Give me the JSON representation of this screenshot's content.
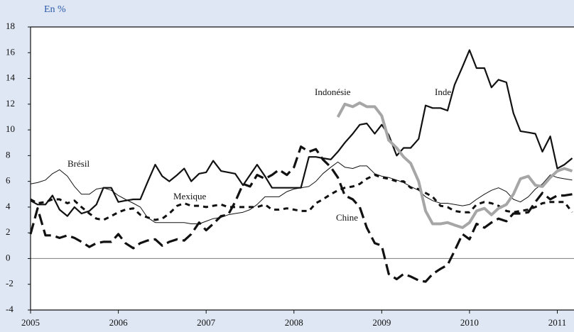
{
  "chart_data": {
    "type": "line",
    "y_label": "En %",
    "x": [
      2005,
      2005.08,
      2005.17,
      2005.25,
      2005.33,
      2005.42,
      2005.5,
      2005.58,
      2005.67,
      2005.75,
      2005.83,
      2005.92,
      2006,
      2006.08,
      2006.17,
      2006.25,
      2006.33,
      2006.42,
      2006.5,
      2006.58,
      2006.67,
      2006.75,
      2006.83,
      2006.92,
      2007,
      2007.08,
      2007.17,
      2007.25,
      2007.33,
      2007.42,
      2007.5,
      2007.58,
      2007.67,
      2007.75,
      2007.83,
      2007.92,
      2008,
      2008.08,
      2008.17,
      2008.25,
      2008.33,
      2008.42,
      2008.5,
      2008.58,
      2008.67,
      2008.75,
      2008.83,
      2008.92,
      2009,
      2009.08,
      2009.17,
      2009.25,
      2009.33,
      2009.42,
      2009.5,
      2009.58,
      2009.67,
      2009.75,
      2009.83,
      2009.92,
      2010,
      2010.08,
      2010.17,
      2010.25,
      2010.33,
      2010.42,
      2010.5,
      2010.58,
      2010.67,
      2010.75,
      2010.83,
      2010.92,
      2011,
      2011.08,
      2011.17
    ],
    "series": [
      {
        "name": "Inde",
        "color": "#111111",
        "values": [
          4.5,
          4.2,
          4.2,
          4.9,
          3.8,
          3.3,
          4.0,
          3.5,
          3.7,
          4.2,
          5.5,
          5.5,
          4.4,
          4.5,
          4.6,
          4.6,
          5.9,
          7.3,
          6.4,
          6.0,
          6.5,
          7.0,
          6.0,
          6.6,
          6.7,
          7.6,
          6.8,
          6.7,
          6.6,
          5.7,
          6.5,
          7.3,
          6.4,
          5.5,
          5.5,
          5.5,
          5.5,
          5.5,
          7.9,
          7.9,
          7.8,
          7.7,
          8.3,
          9.0,
          9.7,
          10.4,
          10.5,
          9.7,
          10.4,
          9.6,
          8.0,
          8.6,
          8.6,
          9.3,
          11.9,
          11.7,
          11.7,
          11.5,
          13.5,
          14.9,
          16.2,
          14.8,
          14.8,
          13.3,
          13.9,
          13.7,
          11.3,
          9.9,
          9.8,
          9.7,
          8.3,
          9.5,
          7.0,
          7.3,
          7.8
        ]
      },
      {
        "name": "Brésil",
        "color": "#111111",
        "values": [
          5.8,
          5.9,
          6.1,
          6.6,
          6.9,
          6.4,
          5.6,
          5.0,
          5.0,
          5.4,
          5.5,
          5.3,
          4.9,
          4.6,
          4.3,
          4.0,
          3.2,
          2.8,
          2.8,
          2.8,
          2.8,
          2.8,
          2.7,
          2.7,
          2.9,
          3.1,
          3.2,
          3.4,
          3.5,
          3.6,
          3.8,
          4.2,
          4.8,
          4.8,
          4.8,
          5.2,
          5.4,
          5.5,
          5.6,
          6.0,
          6.6,
          7.1,
          7.5,
          7.1,
          7.0,
          7.2,
          7.2,
          6.6,
          6.4,
          6.3,
          6.1,
          5.9,
          5.6,
          5.3,
          4.8,
          4.5,
          4.3,
          4.3,
          4.2,
          4.1,
          4.2,
          4.6,
          5.0,
          5.3,
          5.5,
          5.2,
          4.6,
          4.4,
          4.8,
          5.4,
          5.8,
          6.5,
          6.3,
          6.2,
          6.1
        ]
      },
      {
        "name": "Mexique",
        "color": "#111111",
        "values": [
          4.6,
          4.3,
          4.4,
          4.6,
          4.6,
          4.3,
          4.5,
          4.0,
          3.5,
          3.1,
          3.0,
          3.3,
          3.6,
          3.8,
          3.9,
          3.4,
          3.2,
          3.0,
          3.1,
          3.5,
          4.1,
          4.3,
          4.1,
          4.1,
          4.0,
          4.1,
          4.2,
          4.0,
          4.0,
          4.0,
          4.0,
          4.0,
          4.2,
          3.8,
          3.8,
          3.9,
          3.8,
          3.7,
          3.7,
          4.3,
          4.6,
          5.0,
          5.3,
          5.5,
          5.6,
          5.8,
          6.2,
          6.5,
          6.3,
          6.2,
          6.0,
          6.0,
          5.5,
          5.4,
          5.1,
          4.8,
          4.1,
          4.0,
          3.7,
          3.6,
          3.6,
          4.2,
          4.4,
          4.3,
          4.1,
          3.7,
          3.6,
          3.7,
          3.8,
          4.0,
          4.3,
          4.4,
          4.4,
          4.4,
          3.6
        ]
      },
      {
        "name": "Chine",
        "color": "#111111",
        "values": [
          1.9,
          3.9,
          1.8,
          1.8,
          1.6,
          1.8,
          1.6,
          1.3,
          0.9,
          1.2,
          1.3,
          1.3,
          1.9,
          1.2,
          0.8,
          1.2,
          1.4,
          1.5,
          1.0,
          1.3,
          1.5,
          1.4,
          1.9,
          2.8,
          2.2,
          2.7,
          3.3,
          3.4,
          4.4,
          5.8,
          5.6,
          6.5,
          6.2,
          6.5,
          6.9,
          6.5,
          7.1,
          8.7,
          8.3,
          8.5,
          7.7,
          7.1,
          6.3,
          4.9,
          4.6,
          4.0,
          2.4,
          1.2,
          1.0,
          -1.2,
          -1.6,
          -1.2,
          -1.4,
          -1.7,
          -1.8,
          -1.2,
          -0.8,
          -0.5,
          0.6,
          1.9,
          1.5,
          2.7,
          2.4,
          2.8,
          3.1,
          2.9,
          3.5,
          3.5,
          3.6,
          4.4,
          5.1,
          4.6,
          4.9,
          4.9,
          5.0
        ]
      },
      {
        "name": "Indonésie",
        "color": "#a6a6a6",
        "values": [
          null,
          null,
          null,
          null,
          null,
          null,
          null,
          null,
          null,
          null,
          null,
          null,
          null,
          null,
          null,
          null,
          null,
          null,
          null,
          null,
          null,
          null,
          null,
          null,
          null,
          null,
          null,
          null,
          null,
          null,
          null,
          null,
          null,
          null,
          null,
          null,
          null,
          null,
          null,
          null,
          null,
          null,
          11.0,
          12.0,
          11.8,
          12.1,
          11.8,
          11.8,
          11.1,
          9.2,
          8.6,
          7.9,
          7.4,
          6.0,
          3.7,
          2.7,
          2.7,
          2.8,
          2.6,
          2.4,
          2.8,
          3.7,
          3.9,
          3.4,
          3.9,
          4.2,
          5.0,
          6.2,
          6.4,
          5.7,
          5.6,
          6.3,
          6.8,
          7.0,
          6.8
        ]
      }
    ],
    "xlim": [
      2005,
      2011.19
    ],
    "xticks": [
      2005,
      2006,
      2007,
      2008,
      2009,
      2010,
      2011
    ],
    "ylim": [
      -4,
      18
    ],
    "yticks": [
      -4,
      -2,
      0,
      2,
      4,
      6,
      8,
      10,
      12,
      14,
      16,
      18
    ]
  }
}
